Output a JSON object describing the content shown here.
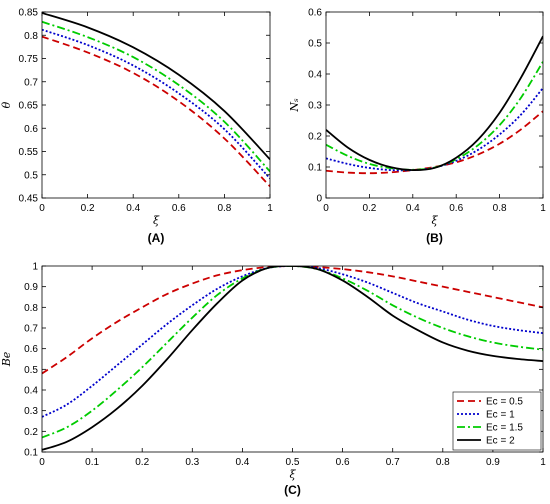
{
  "styles": [
    {
      "color": "#cc0000",
      "dash": "7,4",
      "width": 1.8
    },
    {
      "color": "#0000cc",
      "dash": "2,2",
      "width": 1.8
    },
    {
      "color": "#00cc00",
      "dash": "8,3,2,3",
      "width": 1.8
    },
    {
      "color": "#000000",
      "dash": "",
      "width": 1.8
    }
  ],
  "chart_data": [
    {
      "type": "line",
      "panel_label": "(A)",
      "xlabel": "ξ",
      "ylabel": "θ",
      "xlim": [
        0,
        1
      ],
      "ylim": [
        0.45,
        0.85
      ],
      "xticks": [
        0,
        0.2,
        0.4,
        0.6,
        0.8,
        1
      ],
      "yticks": [
        0.45,
        0.5,
        0.55,
        0.6,
        0.65,
        0.7,
        0.75,
        0.8,
        0.85
      ],
      "xtick_labels": [
        "0",
        "0.2",
        "0.4",
        "0.6",
        "0.8",
        "1"
      ],
      "ytick_labels": [
        "0.45",
        "0.5",
        "0.55",
        "0.6",
        "0.65",
        "0.7",
        "0.75",
        "0.8",
        "0.85"
      ],
      "x": [
        0,
        0.2,
        0.4,
        0.6,
        0.8,
        1
      ],
      "series": [
        {
          "values": [
            0.797,
            0.763,
            0.719,
            0.658,
            0.578,
            0.475
          ]
        },
        {
          "values": [
            0.812,
            0.779,
            0.735,
            0.675,
            0.598,
            0.492
          ]
        },
        {
          "values": [
            0.829,
            0.796,
            0.753,
            0.693,
            0.614,
            0.507
          ]
        },
        {
          "values": [
            0.848,
            0.817,
            0.774,
            0.715,
            0.637,
            0.533
          ]
        }
      ]
    },
    {
      "type": "line",
      "panel_label": "(B)",
      "xlabel": "ξ",
      "ylabel": "Nₛ",
      "xlim": [
        0,
        1
      ],
      "ylim": [
        0,
        0.6
      ],
      "xticks": [
        0,
        0.2,
        0.4,
        0.6,
        0.8,
        1
      ],
      "yticks": [
        0,
        0.1,
        0.2,
        0.3,
        0.4,
        0.5,
        0.6
      ],
      "xtick_labels": [
        "0",
        "0.2",
        "0.4",
        "0.6",
        "0.8",
        "1"
      ],
      "ytick_labels": [
        "0",
        "0.1",
        "0.2",
        "0.3",
        "0.4",
        "0.5",
        "0.6"
      ],
      "x": [
        0,
        0.1,
        0.2,
        0.3,
        0.4,
        0.5,
        0.6,
        0.7,
        0.8,
        0.9,
        1
      ],
      "series": [
        {
          "values": [
            0.088,
            0.082,
            0.08,
            0.083,
            0.09,
            0.1,
            0.115,
            0.14,
            0.175,
            0.222,
            0.28
          ]
        },
        {
          "values": [
            0.128,
            0.11,
            0.097,
            0.09,
            0.09,
            0.098,
            0.12,
            0.155,
            0.205,
            0.27,
            0.355
          ]
        },
        {
          "values": [
            0.172,
            0.136,
            0.11,
            0.096,
            0.091,
            0.098,
            0.125,
            0.17,
            0.235,
            0.325,
            0.44
          ]
        },
        {
          "values": [
            0.22,
            0.163,
            0.123,
            0.099,
            0.09,
            0.097,
            0.13,
            0.188,
            0.275,
            0.39,
            0.522
          ]
        }
      ]
    },
    {
      "type": "line",
      "panel_label": "(C)",
      "xlabel": "ξ",
      "ylabel": "Be",
      "xlim": [
        0,
        1
      ],
      "ylim": [
        0.1,
        1
      ],
      "xticks": [
        0,
        0.1,
        0.2,
        0.3,
        0.4,
        0.5,
        0.6,
        0.7,
        0.8,
        0.9,
        1
      ],
      "yticks": [
        0.1,
        0.2,
        0.3,
        0.4,
        0.5,
        0.6,
        0.7,
        0.8,
        0.9,
        1
      ],
      "xtick_labels": [
        "0",
        "0.1",
        "0.2",
        "0.3",
        "0.4",
        "0.5",
        "0.6",
        "0.7",
        "0.8",
        "0.9",
        "1"
      ],
      "ytick_labels": [
        "0.1",
        "0.2",
        "0.3",
        "0.4",
        "0.5",
        "0.6",
        "0.7",
        "0.8",
        "0.9",
        "1"
      ],
      "legend_position": "bottom-right",
      "x": [
        0,
        0.05,
        0.1,
        0.15,
        0.2,
        0.25,
        0.3,
        0.35,
        0.4,
        0.45,
        0.5,
        0.55,
        0.6,
        0.65,
        0.7,
        0.75,
        0.8,
        0.85,
        0.9,
        0.95,
        1
      ],
      "series": [
        {
          "name": "Ec = 0.5",
          "values": [
            0.48,
            0.56,
            0.65,
            0.73,
            0.8,
            0.865,
            0.915,
            0.955,
            0.98,
            0.995,
            1.0,
            0.995,
            0.985,
            0.97,
            0.95,
            0.925,
            0.9,
            0.875,
            0.85,
            0.825,
            0.8
          ]
        },
        {
          "name": "Ec = 1",
          "values": [
            0.27,
            0.33,
            0.42,
            0.52,
            0.62,
            0.72,
            0.81,
            0.89,
            0.95,
            0.99,
            1.0,
            0.99,
            0.96,
            0.92,
            0.87,
            0.82,
            0.78,
            0.74,
            0.71,
            0.69,
            0.675
          ]
        },
        {
          "name": "Ec = 1.5",
          "values": [
            0.17,
            0.22,
            0.3,
            0.4,
            0.51,
            0.63,
            0.75,
            0.86,
            0.94,
            0.99,
            1.0,
            0.985,
            0.94,
            0.88,
            0.81,
            0.75,
            0.7,
            0.66,
            0.63,
            0.61,
            0.595
          ]
        },
        {
          "name": "Ec = 2",
          "values": [
            0.11,
            0.15,
            0.22,
            0.31,
            0.42,
            0.55,
            0.69,
            0.82,
            0.93,
            0.99,
            1.0,
            0.985,
            0.93,
            0.85,
            0.76,
            0.69,
            0.63,
            0.59,
            0.565,
            0.55,
            0.54
          ]
        }
      ]
    }
  ]
}
